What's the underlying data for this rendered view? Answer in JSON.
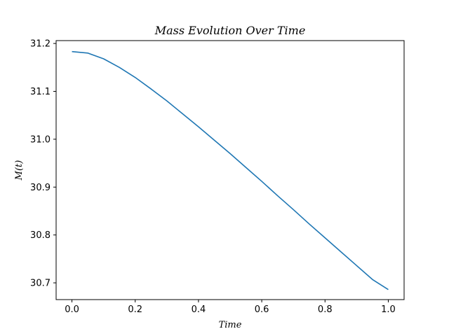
{
  "chart_data": {
    "type": "line",
    "title": "Mass Evolution Over Time",
    "xlabel": "Time",
    "ylabel": "M(t)",
    "xlim": [
      -0.05,
      1.05
    ],
    "ylim": [
      30.665,
      31.206
    ],
    "xticks": [
      0.0,
      0.2,
      0.4,
      0.6,
      0.8,
      1.0
    ],
    "xtick_labels": [
      "0.0",
      "0.2",
      "0.4",
      "0.6",
      "0.8",
      "1.0"
    ],
    "yticks": [
      30.7,
      30.8,
      30.9,
      31.0,
      31.1,
      31.2
    ],
    "ytick_labels": [
      "30.7",
      "30.8",
      "30.9",
      "31.0",
      "31.1",
      "31.2"
    ],
    "grid": false,
    "legend": "none",
    "series": [
      {
        "color": "#1f77b4",
        "x": [
          0.0,
          0.05,
          0.1,
          0.15,
          0.2,
          0.25,
          0.3,
          0.35,
          0.4,
          0.45,
          0.5,
          0.55,
          0.6,
          0.65,
          0.7,
          0.75,
          0.8,
          0.85,
          0.9,
          0.95,
          1.0
        ],
        "y": [
          31.183,
          31.18,
          31.168,
          31.15,
          31.129,
          31.105,
          31.08,
          31.053,
          31.026,
          30.998,
          30.97,
          30.941,
          30.912,
          30.882,
          30.853,
          30.823,
          30.794,
          30.765,
          30.736,
          30.707,
          30.686
        ]
      }
    ]
  }
}
